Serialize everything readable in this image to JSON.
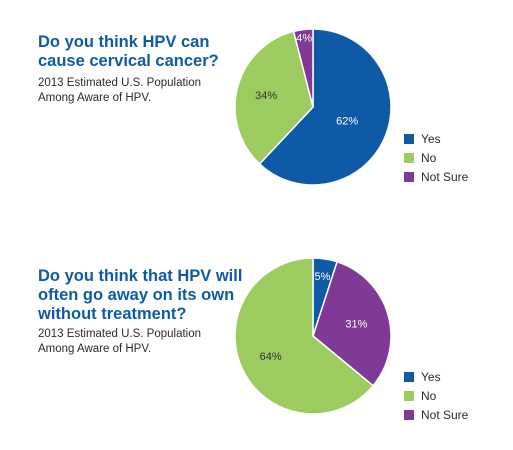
{
  "colors": {
    "yes": "#0f5aa7",
    "no": "#9ccb5f",
    "not_sure": "#7e3a96",
    "title": "#0f5aa7"
  },
  "chart_data": [
    {
      "type": "pie",
      "title": "Do you think HPV can cause cervical cancer?",
      "subtitle": "2013 Estimated U.S. Population Among Aware of HPV.",
      "categories": [
        "Yes",
        "No",
        "Not Sure"
      ],
      "values": [
        62,
        34,
        4
      ],
      "labels": [
        "62%",
        "34%",
        "4%"
      ],
      "legend": [
        "Yes",
        "No",
        "Not Sure"
      ],
      "legend_position": "right"
    },
    {
      "type": "pie",
      "title": "Do you think that HPV will often go away on its own without treatment?",
      "subtitle": "2013 Estimated U.S. Population Among Aware of HPV.",
      "categories": [
        "Yes",
        "Not Sure",
        "No"
      ],
      "values": [
        5,
        31,
        64
      ],
      "labels": [
        "5%",
        "31%",
        "64%"
      ],
      "legend": [
        "Yes",
        "No",
        "Not Sure"
      ],
      "legend_position": "right"
    }
  ]
}
